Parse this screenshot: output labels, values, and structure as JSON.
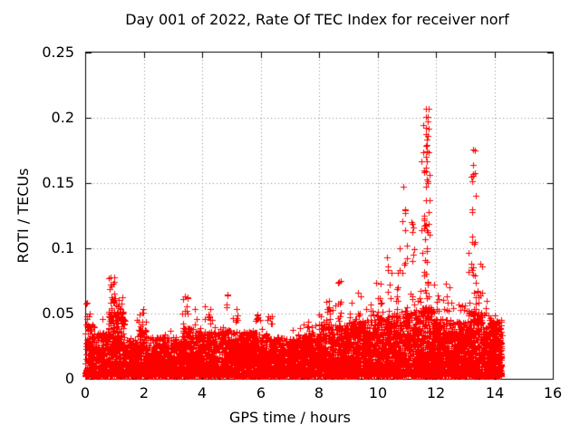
{
  "chart_data": {
    "type": "scatter",
    "title": "Day 001 of 2022, Rate Of TEC Index for receiver norf",
    "xlabel": "GPS time / hours",
    "ylabel": "ROTI / TECUs",
    "xlim": [
      0,
      16
    ],
    "ylim": [
      0,
      0.25
    ],
    "xticks": [
      0,
      2,
      4,
      6,
      8,
      10,
      12,
      14,
      16
    ],
    "xtick_labels": [
      "0",
      "2",
      "4",
      "6",
      "8",
      "10",
      "12",
      "14",
      "16"
    ],
    "yticks": [
      0,
      0.05,
      0.1,
      0.15,
      0.2,
      0.25
    ],
    "ytick_labels": [
      "0",
      "0.05",
      "0.1",
      "0.15",
      "0.2",
      "0.25"
    ],
    "grid": {
      "show": true,
      "style": "dotted",
      "color": "#909090"
    },
    "axis_color": "#000000",
    "marker": {
      "shape": "plus",
      "size": 7,
      "color": "#ff0000"
    },
    "data_time_range_hours": [
      0,
      14.25
    ],
    "max_value": 0.222,
    "max_value_time": 11.7,
    "point_generation": {
      "seed": 7,
      "y_floor": 0.002,
      "baseline_segments": [
        [
          0.0,
          0.3,
          0.042,
          550
        ],
        [
          0.3,
          0.8,
          0.036,
          500
        ],
        [
          0.8,
          1.35,
          0.052,
          600
        ],
        [
          1.35,
          1.8,
          0.03,
          500
        ],
        [
          1.8,
          2.15,
          0.038,
          500
        ],
        [
          2.15,
          3.3,
          0.032,
          500
        ],
        [
          3.3,
          3.85,
          0.04,
          550
        ],
        [
          3.85,
          4.6,
          0.036,
          550
        ],
        [
          4.6,
          5.25,
          0.038,
          550
        ],
        [
          5.25,
          6.2,
          0.036,
          550
        ],
        [
          6.2,
          7.1,
          0.032,
          520
        ],
        [
          7.1,
          8.0,
          0.034,
          550
        ],
        [
          8.0,
          9.1,
          0.042,
          620
        ],
        [
          9.1,
          10.0,
          0.044,
          620
        ],
        [
          10.0,
          10.7,
          0.048,
          620
        ],
        [
          10.7,
          11.4,
          0.052,
          620
        ],
        [
          11.4,
          11.95,
          0.055,
          650
        ],
        [
          11.95,
          12.6,
          0.046,
          600
        ],
        [
          12.6,
          13.1,
          0.044,
          600
        ],
        [
          13.1,
          13.6,
          0.052,
          650
        ],
        [
          13.6,
          13.85,
          0.042,
          600
        ],
        [
          13.85,
          14.25,
          0.045,
          900
        ]
      ],
      "clusters": [
        [
          0.1,
          0.05,
          5,
          0.045,
          0.06
        ],
        [
          0.95,
          0.07,
          26,
          0.042,
          0.078
        ],
        [
          1.25,
          0.06,
          12,
          0.042,
          0.066
        ],
        [
          1.92,
          0.07,
          8,
          0.042,
          0.06
        ],
        [
          3.42,
          0.08,
          10,
          0.042,
          0.066
        ],
        [
          4.25,
          0.12,
          10,
          0.042,
          0.056
        ],
        [
          4.85,
          0.04,
          4,
          0.048,
          0.068
        ],
        [
          5.2,
          0.06,
          6,
          0.042,
          0.05
        ],
        [
          5.9,
          0.05,
          9,
          0.042,
          0.053
        ],
        [
          6.35,
          0.08,
          6,
          0.04,
          0.05
        ],
        [
          7.5,
          0.15,
          5,
          0.038,
          0.046
        ],
        [
          8.3,
          0.08,
          10,
          0.042,
          0.072
        ],
        [
          8.65,
          0.07,
          8,
          0.042,
          0.075
        ],
        [
          9.05,
          0.06,
          6,
          0.042,
          0.06
        ],
        [
          9.4,
          0.07,
          8,
          0.042,
          0.066
        ],
        [
          9.75,
          0.07,
          8,
          0.042,
          0.07
        ],
        [
          10.1,
          0.06,
          8,
          0.045,
          0.08
        ],
        [
          10.4,
          0.06,
          9,
          0.045,
          0.095
        ],
        [
          10.65,
          0.05,
          8,
          0.048,
          0.105
        ],
        [
          10.92,
          0.05,
          12,
          0.05,
          0.148
        ],
        [
          11.2,
          0.05,
          10,
          0.055,
          0.125
        ],
        [
          11.65,
          0.09,
          55,
          0.05,
          0.195
        ],
        [
          11.7,
          0.035,
          12,
          0.15,
          0.222
        ],
        [
          12.05,
          0.06,
          6,
          0.042,
          0.065
        ],
        [
          12.45,
          0.08,
          10,
          0.042,
          0.075
        ],
        [
          12.8,
          0.08,
          8,
          0.042,
          0.058
        ],
        [
          13.25,
          0.06,
          28,
          0.048,
          0.158
        ],
        [
          13.27,
          0.03,
          7,
          0.155,
          0.192
        ],
        [
          13.5,
          0.05,
          6,
          0.055,
          0.1
        ],
        [
          13.7,
          0.08,
          6,
          0.042,
          0.06
        ],
        [
          14.0,
          0.1,
          8,
          0.038,
          0.05
        ]
      ]
    }
  }
}
